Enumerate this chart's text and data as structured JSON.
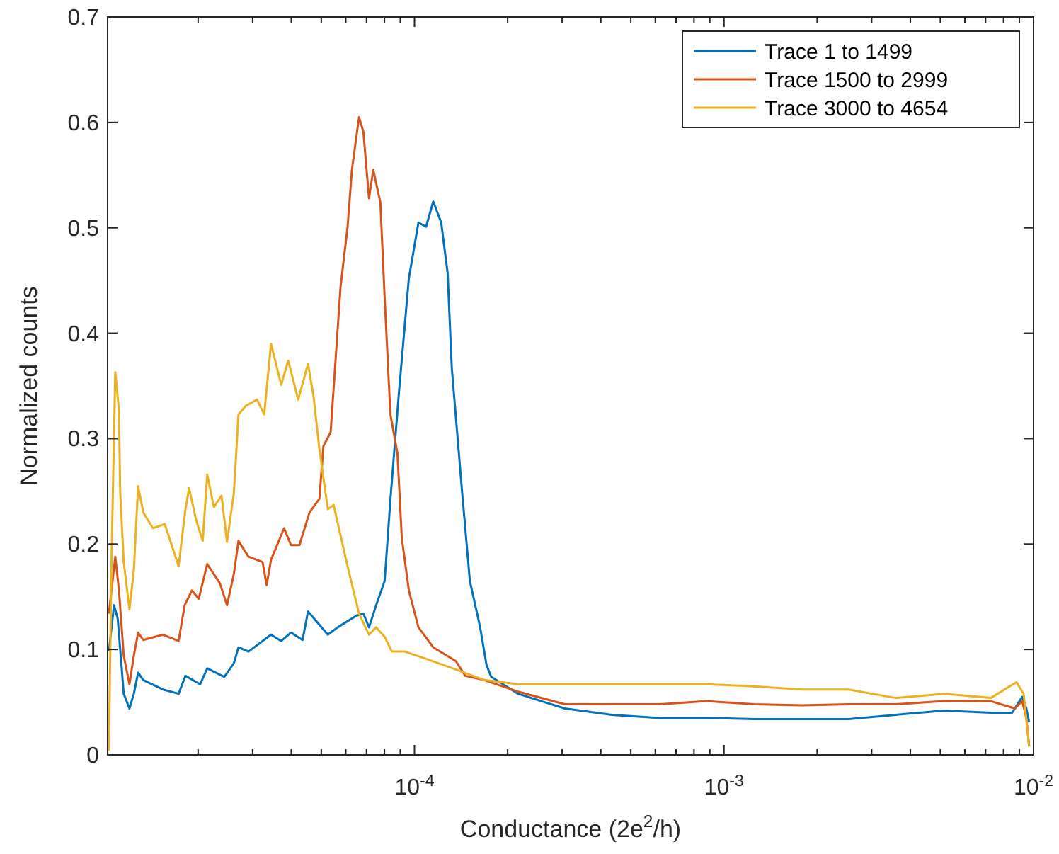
{
  "chart_data": {
    "type": "line",
    "xlabel": "Conductance (2e$^{2}$/h)",
    "ylabel": "Normalized counts",
    "log": "x",
    "legend": "top right",
    "grid": false,
    "marker": "none",
    "line_style": "solid",
    "xlim": [
      1.02e-05,
      0.01
    ],
    "ylim": [
      0,
      0.7
    ],
    "yticks": [
      0,
      0.1,
      0.2,
      0.3,
      0.4,
      0.5,
      0.6,
      0.7
    ],
    "xticks": [
      {
        "value": 2e-05,
        "label": null
      },
      {
        "value": 3e-05,
        "label": null
      },
      {
        "value": 4e-05,
        "label": null
      },
      {
        "value": 5e-05,
        "label": null
      },
      {
        "value": 6e-05,
        "label": null
      },
      {
        "value": 7e-05,
        "label": null
      },
      {
        "value": 8e-05,
        "label": null
      },
      {
        "value": 9e-05,
        "label": null
      },
      {
        "value": 0.0001,
        "label": "10$^{-4}$"
      },
      {
        "value": 0.0002,
        "label": null
      },
      {
        "value": 0.0003,
        "label": null
      },
      {
        "value": 0.0004,
        "label": null
      },
      {
        "value": 0.0005,
        "label": null
      },
      {
        "value": 0.0006,
        "label": null
      },
      {
        "value": 0.0007,
        "label": null
      },
      {
        "value": 0.0008,
        "label": null
      },
      {
        "value": 0.0009,
        "label": null
      },
      {
        "value": 0.001,
        "label": "10$^{-3}$"
      },
      {
        "value": 0.002,
        "label": null
      },
      {
        "value": 0.003,
        "label": null
      },
      {
        "value": 0.004,
        "label": null
      },
      {
        "value": 0.005,
        "label": null
      },
      {
        "value": 0.006,
        "label": null
      },
      {
        "value": 0.007,
        "label": null
      },
      {
        "value": 0.008,
        "label": null
      },
      {
        "value": 0.009,
        "label": null
      },
      {
        "value": 0.01,
        "label": "10$^{-2}$"
      }
    ],
    "series": [
      {
        "name": "Trace 1 to 1499",
        "color": "#0072bd",
        "x": [
          1.03e-05,
          1.07e-05,
          1.1e-05,
          1.15e-05,
          1.2e-05,
          1.24e-05,
          1.28e-05,
          1.33e-05,
          1.54e-05,
          1.73e-05,
          1.82e-05,
          2.03e-05,
          2.14e-05,
          2.43e-05,
          2.61e-05,
          2.7e-05,
          2.91e-05,
          3.44e-05,
          3.71e-05,
          3.99e-05,
          4.35e-05,
          4.53e-05,
          5.25e-05,
          5.65e-05,
          6.49e-05,
          6.84e-05,
          7.13e-05,
          7.52e-05,
          8.01e-05,
          8.36e-05,
          8.91e-05,
          9.59e-05,
          0.000103,
          0.000109,
          0.000115,
          0.000122,
          0.000128,
          0.000132,
          0.000142,
          0.000151,
          0.000163,
          0.000171,
          0.000177,
          0.000216,
          0.000306,
          0.000434,
          0.000622,
          0.000881,
          0.00125,
          0.00179,
          0.00253,
          0.00359,
          0.00514,
          0.00728,
          0.00853,
          0.00919,
          0.00948,
          0.00968
        ],
        "values": [
          0.098,
          0.142,
          0.129,
          0.058,
          0.044,
          0.058,
          0.078,
          0.071,
          0.062,
          0.058,
          0.075,
          0.067,
          0.082,
          0.074,
          0.087,
          0.102,
          0.098,
          0.114,
          0.108,
          0.116,
          0.109,
          0.136,
          0.114,
          0.121,
          0.132,
          0.134,
          0.121,
          0.142,
          0.165,
          0.242,
          0.344,
          0.452,
          0.505,
          0.501,
          0.525,
          0.505,
          0.457,
          0.367,
          0.255,
          0.165,
          0.121,
          0.085,
          0.074,
          0.058,
          0.044,
          0.038,
          0.035,
          0.035,
          0.034,
          0.034,
          0.034,
          0.038,
          0.042,
          0.04,
          0.04,
          0.055,
          0.044,
          0.031
        ]
      },
      {
        "name": "Trace 1500 to 2999",
        "color": "#d95319",
        "x": [
          1.03e-05,
          1.08e-05,
          1.11e-05,
          1.15e-05,
          1.2e-05,
          1.24e-05,
          1.28e-05,
          1.33e-05,
          1.54e-05,
          1.73e-05,
          1.81e-05,
          1.91e-05,
          2.01e-05,
          2.14e-05,
          2.35e-05,
          2.48e-05,
          2.61e-05,
          2.7e-05,
          2.91e-05,
          3.23e-05,
          3.33e-05,
          3.44e-05,
          3.79e-05,
          3.99e-05,
          4.25e-05,
          4.58e-05,
          4.93e-05,
          5.08e-05,
          5.36e-05,
          5.77e-05,
          6.08e-05,
          6.28e-05,
          6.62e-05,
          6.84e-05,
          7.13e-05,
          7.36e-05,
          7.76e-05,
          8.01e-05,
          8.36e-05,
          8.81e-05,
          9.1e-05,
          9.59e-05,
          0.000103,
          0.000115,
          0.000136,
          0.000146,
          0.000168,
          0.000216,
          0.000306,
          0.000434,
          0.000622,
          0.000881,
          0.00125,
          0.00179,
          0.00253,
          0.00359,
          0.00514,
          0.00728,
          0.00871,
          0.00919,
          0.00948,
          0.00968
        ],
        "values": [
          0.134,
          0.188,
          0.156,
          0.094,
          0.067,
          0.094,
          0.116,
          0.109,
          0.114,
          0.108,
          0.142,
          0.156,
          0.148,
          0.181,
          0.163,
          0.142,
          0.172,
          0.203,
          0.188,
          0.183,
          0.161,
          0.185,
          0.215,
          0.199,
          0.199,
          0.23,
          0.243,
          0.293,
          0.306,
          0.444,
          0.501,
          0.555,
          0.605,
          0.591,
          0.528,
          0.555,
          0.524,
          0.434,
          0.323,
          0.286,
          0.206,
          0.156,
          0.121,
          0.102,
          0.089,
          0.075,
          0.071,
          0.06,
          0.048,
          0.048,
          0.048,
          0.051,
          0.048,
          0.047,
          0.048,
          0.048,
          0.051,
          0.051,
          0.044,
          0.051,
          0.035,
          0.008
        ]
      },
      {
        "name": "Trace 3000 to 4654",
        "color": "#edb120",
        "x": [
          1.03e-05,
          1.05e-05,
          1.08e-05,
          1.11e-05,
          1.12e-05,
          1.15e-05,
          1.2e-05,
          1.24e-05,
          1.28e-05,
          1.33e-05,
          1.43e-05,
          1.56e-05,
          1.73e-05,
          1.82e-05,
          1.87e-05,
          1.97e-05,
          2.07e-05,
          2.14e-05,
          2.25e-05,
          2.38e-05,
          2.48e-05,
          2.61e-05,
          2.7e-05,
          2.85e-05,
          3.1e-05,
          3.27e-05,
          3.44e-05,
          3.71e-05,
          3.91e-05,
          4.21e-05,
          4.53e-05,
          4.72e-05,
          4.93e-05,
          5.25e-05,
          5.48e-05,
          6.08e-05,
          6.62e-05,
          7.13e-05,
          7.52e-05,
          8.01e-05,
          8.45e-05,
          9.29e-05,
          0.000107,
          0.000136,
          0.000168,
          0.000216,
          0.000306,
          0.000434,
          0.000622,
          0.000881,
          0.00125,
          0.00179,
          0.00253,
          0.00359,
          0.00514,
          0.00728,
          0.00881,
          0.00929,
          0.00968
        ],
        "values": [
          0.004,
          0.183,
          0.363,
          0.327,
          0.25,
          0.183,
          0.138,
          0.175,
          0.255,
          0.23,
          0.215,
          0.219,
          0.179,
          0.233,
          0.253,
          0.223,
          0.203,
          0.266,
          0.235,
          0.246,
          0.202,
          0.249,
          0.323,
          0.331,
          0.337,
          0.323,
          0.39,
          0.351,
          0.374,
          0.337,
          0.371,
          0.34,
          0.29,
          0.233,
          0.237,
          0.179,
          0.134,
          0.114,
          0.121,
          0.112,
          0.098,
          0.098,
          0.092,
          0.081,
          0.071,
          0.067,
          0.067,
          0.067,
          0.067,
          0.067,
          0.065,
          0.062,
          0.062,
          0.054,
          0.058,
          0.054,
          0.069,
          0.058,
          0.008
        ]
      }
    ]
  }
}
